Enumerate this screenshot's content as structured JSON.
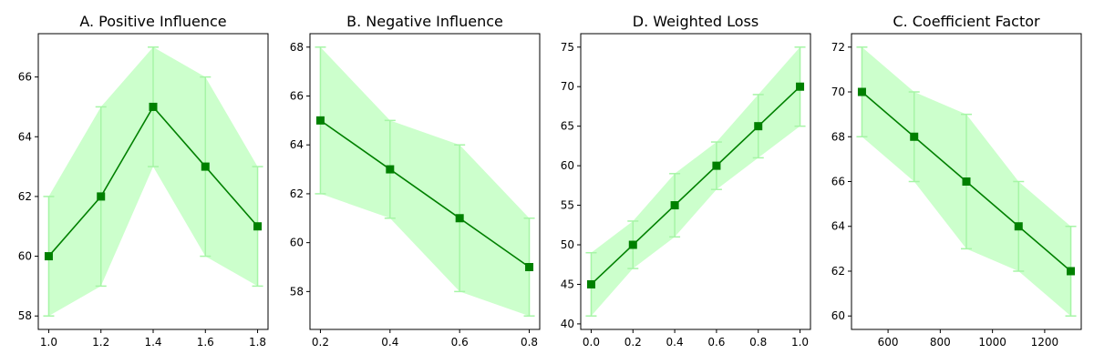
{
  "chart_data": [
    {
      "type": "line",
      "title": "A. Positive Influence",
      "xlabel": "",
      "ylabel": "",
      "x": [
        1.0,
        1.2,
        1.4,
        1.6,
        1.8
      ],
      "values": [
        60,
        62,
        65,
        63,
        61
      ],
      "lower": [
        58,
        59,
        63,
        60,
        59
      ],
      "upper": [
        62,
        65,
        67,
        66,
        63
      ],
      "xlim": [
        0.96,
        1.84
      ],
      "ylim": [
        57.55,
        67.45
      ],
      "xticks": [
        1.0,
        1.2,
        1.4,
        1.6,
        1.8
      ],
      "xtick_labels": [
        "1.0",
        "1.2",
        "1.4",
        "1.6",
        "1.8"
      ],
      "yticks": [
        58,
        60,
        62,
        64,
        66
      ],
      "ytick_labels": [
        "58",
        "60",
        "62",
        "64",
        "66"
      ],
      "marker": "square",
      "grid": false,
      "legend": "none"
    },
    {
      "type": "line",
      "title": "B. Negative Influence",
      "xlabel": "",
      "ylabel": "",
      "x": [
        0.2,
        0.4,
        0.6,
        0.8
      ],
      "values": [
        65,
        63,
        61,
        59
      ],
      "lower": [
        62,
        61,
        58,
        57
      ],
      "upper": [
        68,
        65,
        64,
        61
      ],
      "xlim": [
        0.17,
        0.83
      ],
      "ylim": [
        56.45,
        68.55
      ],
      "xticks": [
        0.2,
        0.4,
        0.6,
        0.8
      ],
      "xtick_labels": [
        "0.2",
        "0.4",
        "0.6",
        "0.8"
      ],
      "yticks": [
        58,
        60,
        62,
        64,
        66,
        68
      ],
      "ytick_labels": [
        "58",
        "60",
        "62",
        "64",
        "66",
        "68"
      ],
      "marker": "square",
      "grid": false,
      "legend": "none"
    },
    {
      "type": "line",
      "title": "D. Weighted Loss",
      "xlabel": "",
      "ylabel": "",
      "x": [
        0.0,
        0.2,
        0.4,
        0.6,
        0.8,
        1.0
      ],
      "values": [
        45,
        50,
        55,
        60,
        65,
        70
      ],
      "lower": [
        41,
        47,
        51,
        57,
        61,
        65
      ],
      "upper": [
        49,
        53,
        59,
        63,
        69,
        75
      ],
      "xlim": [
        -0.05,
        1.05
      ],
      "ylim": [
        39.3,
        76.7
      ],
      "xticks": [
        0.0,
        0.2,
        0.4,
        0.6,
        0.8,
        1.0
      ],
      "xtick_labels": [
        "0.0",
        "0.2",
        "0.4",
        "0.6",
        "0.8",
        "1.0"
      ],
      "yticks": [
        40,
        45,
        50,
        55,
        60,
        65,
        70,
        75
      ],
      "ytick_labels": [
        "40",
        "45",
        "50",
        "55",
        "60",
        "65",
        "70",
        "75"
      ],
      "marker": "square",
      "grid": false,
      "legend": "none"
    },
    {
      "type": "line",
      "title": "C. Coefficient Factor",
      "xlabel": "",
      "ylabel": "",
      "x": [
        500,
        700,
        900,
        1100,
        1300
      ],
      "values": [
        70,
        68,
        66,
        64,
        62
      ],
      "lower": [
        68,
        66,
        63,
        62,
        60
      ],
      "upper": [
        72,
        70,
        69,
        66,
        64
      ],
      "xlim": [
        460,
        1340
      ],
      "ylim": [
        59.4,
        72.6
      ],
      "xticks": [
        600,
        800,
        1000,
        1200
      ],
      "xtick_labels": [
        "600",
        "800",
        "1000",
        "1200"
      ],
      "yticks": [
        60,
        62,
        64,
        66,
        68,
        70,
        72
      ],
      "ytick_labels": [
        "60",
        "62",
        "64",
        "66",
        "68",
        "70",
        "72"
      ],
      "marker": "square",
      "grid": false,
      "legend": "none"
    }
  ],
  "colors": {
    "line": "#008000",
    "marker": "#008000",
    "band": "#ccffcc",
    "errorbar": "#a6f5a6",
    "axis": "#000000",
    "text": "#000000",
    "background": "#ffffff"
  }
}
